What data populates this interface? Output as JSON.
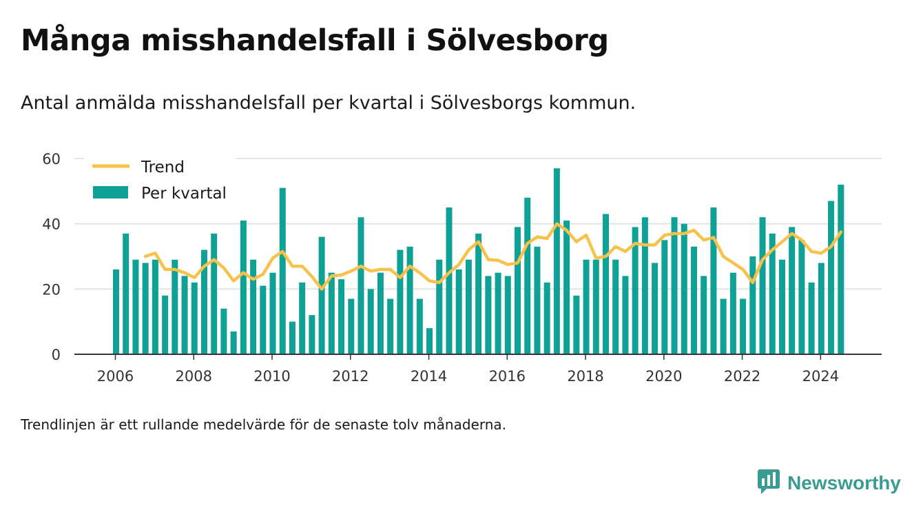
{
  "header": {
    "title": "Många misshandelsfall i Sölvesborg",
    "subtitle": "Antal anmälda misshandelsfall per kvartal i Sölvesborgs kommun."
  },
  "footer": {
    "note": "Trendlinjen är ett rullande medelvärde för de senaste tolv månaderna.",
    "brand": "Newsworthy",
    "brand_icon": "newsworthy-logo-icon"
  },
  "colors": {
    "bar": "#0ea195",
    "trend": "#f8c14a",
    "grid": "#dddddd",
    "axis": "#333333",
    "brand": "#3a9c91"
  },
  "chart_data": {
    "type": "bar",
    "legend": [
      "Trend",
      "Per kvartal"
    ],
    "legend_position": "top-left",
    "ylim": [
      0,
      60
    ],
    "yticks": [
      0,
      20,
      40,
      60
    ],
    "xticks": [
      "2006",
      "2008",
      "2010",
      "2012",
      "2014",
      "2016",
      "2018",
      "2020",
      "2022",
      "2024"
    ],
    "grid": true,
    "start": "2006 Q1",
    "series": [
      {
        "name": "Per kvartal",
        "type": "bar",
        "values": [
          26,
          37,
          29,
          28,
          29,
          18,
          29,
          24,
          22,
          32,
          37,
          14,
          7,
          41,
          29,
          21,
          25,
          51,
          10,
          22,
          12,
          36,
          25,
          23,
          17,
          42,
          20,
          25,
          17,
          32,
          33,
          17,
          8,
          29,
          45,
          26,
          29,
          37,
          24,
          25,
          24,
          39,
          48,
          33,
          22,
          57,
          41,
          18,
          29,
          29,
          43,
          29,
          24,
          39,
          42,
          28,
          35,
          42,
          40,
          33,
          24,
          45,
          17,
          25,
          17,
          30,
          42,
          37,
          29,
          39,
          35,
          22,
          28,
          47,
          52
        ]
      },
      {
        "name": "Trend",
        "type": "line",
        "start_index": 3,
        "values": [
          30,
          31,
          26,
          26,
          25,
          23.5,
          27,
          29,
          26.5,
          22.5,
          25,
          23,
          24.5,
          29.5,
          31.5,
          27,
          27,
          23.8,
          20,
          24,
          24.3,
          25.5,
          27,
          25.5,
          26,
          26,
          23.5,
          27,
          25,
          22.5,
          22,
          25,
          27.5,
          32,
          34.5,
          29,
          28.8,
          27.5,
          28,
          34,
          36,
          35.5,
          40,
          38,
          34.5,
          36.5,
          29.5,
          30,
          33,
          31.5,
          34,
          33.5,
          33.5,
          36.5,
          37,
          37,
          38,
          35,
          35.8,
          30,
          28,
          26,
          22,
          29,
          32,
          34.5,
          37,
          35,
          31.5,
          31,
          33,
          37.5
        ]
      }
    ]
  }
}
